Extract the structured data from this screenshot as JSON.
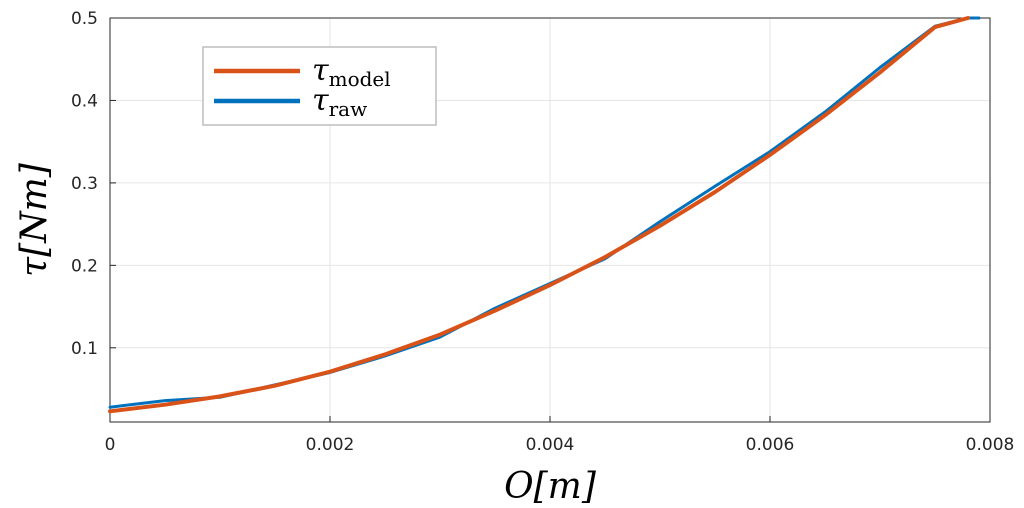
{
  "chart_data": {
    "type": "line",
    "title": "",
    "xlabel": "O[m]",
    "ylabel": "τ[Nm]",
    "xlim": [
      0,
      0.008
    ],
    "ylim": [
      0.01,
      0.5
    ],
    "xticks": [
      0,
      0.002,
      0.004,
      0.006,
      0.008
    ],
    "xtick_labels": [
      "0",
      "0.002",
      "0.004",
      "0.006",
      "0.008"
    ],
    "yticks": [
      0.1,
      0.2,
      0.3,
      0.4,
      0.5
    ],
    "ytick_labels": [
      "0.1",
      "0.2",
      "0.3",
      "0.4",
      "0.5"
    ],
    "grid": true,
    "legend_position": "top-left",
    "series": [
      {
        "name": "τ_model",
        "legend_main": "τ",
        "legend_sub": "model",
        "color": "#D95319",
        "x": [
          0,
          0.0005,
          0.001,
          0.0015,
          0.002,
          0.0025,
          0.003,
          0.0035,
          0.004,
          0.0045,
          0.005,
          0.0055,
          0.006,
          0.0065,
          0.007,
          0.0075,
          0.0078
        ],
        "y": [
          0.023,
          0.031,
          0.041,
          0.054,
          0.071,
          0.092,
          0.116,
          0.145,
          0.176,
          0.21,
          0.248,
          0.289,
          0.334,
          0.382,
          0.434,
          0.489,
          0.5
        ]
      },
      {
        "name": "τ_raw",
        "legend_main": "τ",
        "legend_sub": "raw",
        "color": "#0072BD",
        "x": [
          0,
          0.0005,
          0.001,
          0.0015,
          0.002,
          0.0025,
          0.003,
          0.0035,
          0.004,
          0.0045,
          0.005,
          0.0055,
          0.006,
          0.0065,
          0.007,
          0.0075,
          0.0078,
          0.0079
        ],
        "y": [
          0.028,
          0.036,
          0.04,
          0.055,
          0.07,
          0.09,
          0.113,
          0.148,
          0.178,
          0.208,
          0.253,
          0.296,
          0.338,
          0.386,
          0.44,
          0.49,
          0.5,
          0.5
        ]
      }
    ]
  }
}
